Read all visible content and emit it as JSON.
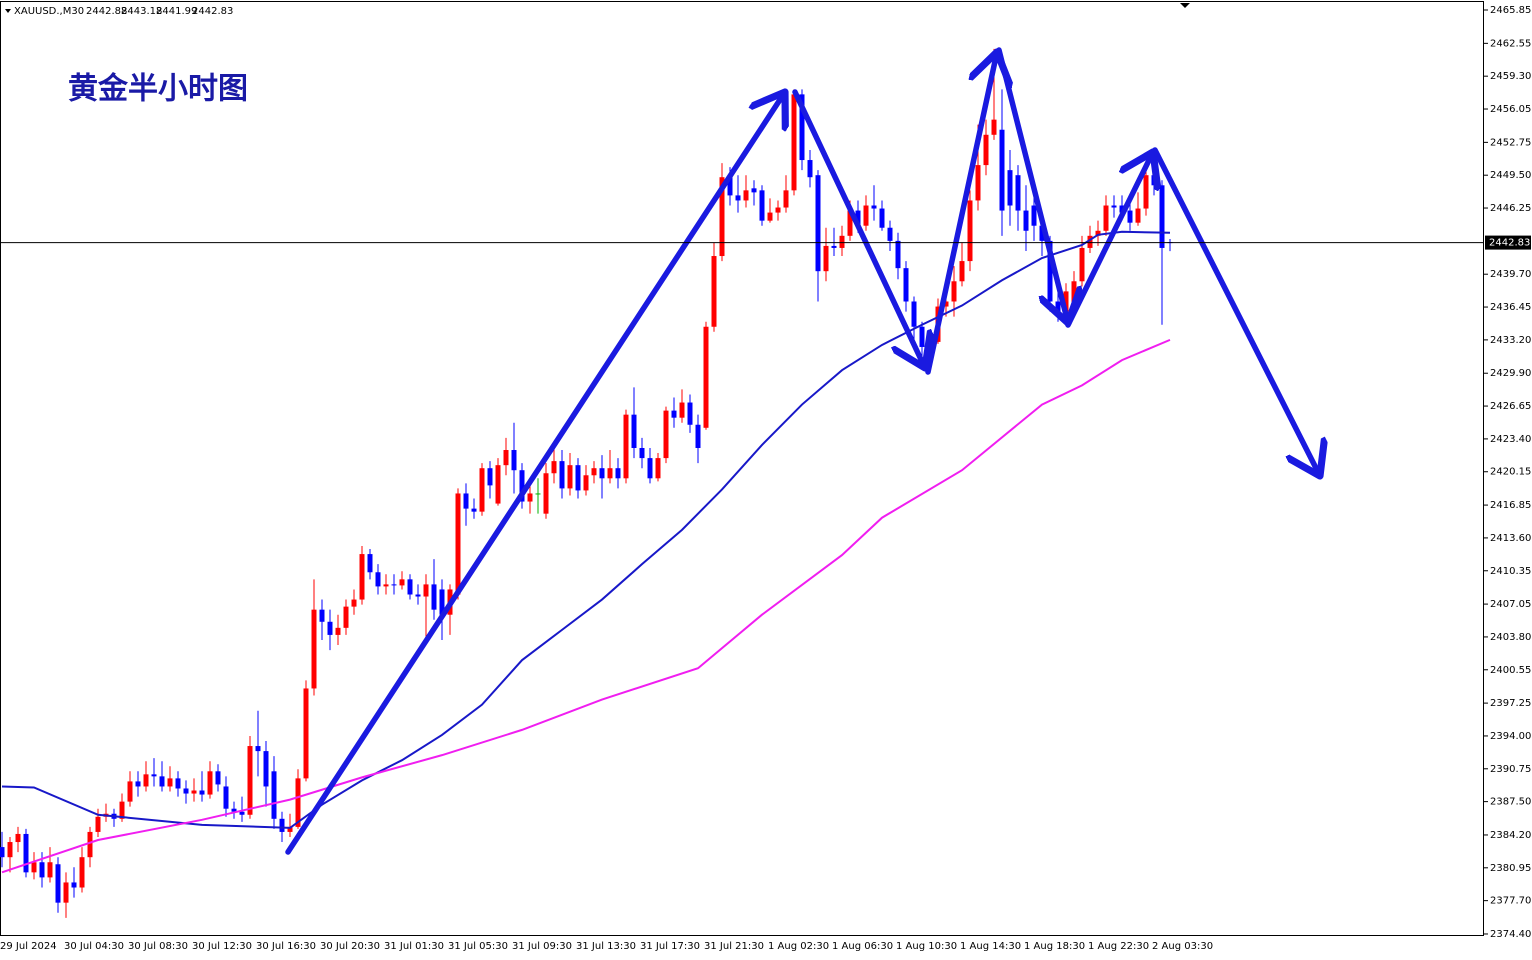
{
  "header": {
    "symbol": "XAUUSD.,M30",
    "open": 2442.88,
    "high": 2443.18,
    "low": 2441.99,
    "close": 2442.83
  },
  "chart_data": {
    "type": "candlestick",
    "title": "黄金半小时图",
    "categories": [
      "29 Jul 2024",
      null,
      null,
      null,
      null,
      null,
      null,
      null,
      "30 Jul 04:30",
      null,
      null,
      null,
      null,
      null,
      null,
      null,
      "30 Jul 08:30",
      null,
      null,
      null,
      null,
      null,
      null,
      null,
      "30 Jul 12:30",
      null,
      null,
      null,
      null,
      null,
      null,
      null,
      "30 Jul 16:30",
      null,
      null,
      null,
      null,
      null,
      null,
      null,
      "30 Jul 20:30",
      null,
      null,
      null,
      null,
      null,
      null,
      null,
      "31 Jul 01:30",
      null,
      null,
      null,
      null,
      null,
      null,
      null,
      "31 Jul 05:30",
      null,
      null,
      null,
      null,
      null,
      null,
      null,
      "31 Jul 09:30",
      null,
      null,
      null,
      null,
      null,
      null,
      null,
      "31 Jul 13:30",
      null,
      null,
      null,
      null,
      null,
      null,
      null,
      "31 Jul 17:30",
      null,
      null,
      null,
      null,
      null,
      null,
      null,
      "31 Jul 21:30",
      null,
      null,
      null,
      null,
      null,
      null,
      null,
      "1 Aug 02:30",
      null,
      null,
      null,
      null,
      null,
      null,
      null,
      "1 Aug 06:30",
      null,
      null,
      null,
      null,
      null,
      null,
      null,
      "1 Aug 10:30",
      null,
      null,
      null,
      null,
      null,
      null,
      null,
      "1 Aug 14:30",
      null,
      null,
      null,
      null,
      null,
      null,
      null,
      "1 Aug 18:30",
      null,
      null,
      null,
      null,
      null,
      null,
      null,
      "1 Aug 22:30",
      null,
      null,
      null,
      null,
      null,
      null,
      null,
      "2 Aug 03:30",
      null,
      null
    ],
    "open": [
      2383,
      2382,
      2383.5,
      2384.3,
      2380.5,
      2381.5,
      2380,
      2381.3,
      2377.5,
      2379.5,
      2379,
      2382,
      2384.5,
      2386,
      2386.3,
      2385.8,
      2387.5,
      2389.5,
      2389,
      2390.2,
      2390,
      2389,
      2389.8,
      2388.8,
      2388.3,
      2388.6,
      2388.2,
      2390.5,
      2389,
      2386.8,
      2386.5,
      2386.2,
      2393,
      2392.5,
      2390.5,
      2385.8,
      2384.5,
      2385,
      2389.8,
      2398.7,
      2406.5,
      2405.3,
      2404,
      2404.7,
      2406.8,
      2407.5,
      2412,
      2410.2,
      2408.8,
      2409,
      2408.9,
      2409.5,
      2408,
      2407.8,
      2409,
      2408.5,
      2406,
      2408,
      2418,
      2416.5,
      2416.2,
      2420.5,
      2417,
      2420.8,
      2422.3,
      2420.3,
      2417.2,
      2418,
      2416,
      2420,
      2421.2,
      2418.5,
      2420.8,
      2418.3,
      2419.8,
      2420.5,
      2419.5,
      2420.5,
      2419.5,
      2425.8,
      2422.5,
      2421.5,
      2419.5,
      2421.5,
      2426.2,
      2425.5,
      2427,
      2424.8,
      2424.5,
      2434.5,
      2441.5,
      2449.3,
      2447.5,
      2447,
      2448.2,
      2448,
      2445,
      2445.8,
      2446.3,
      2448,
      2457.5,
      2451,
      2449.5,
      2440,
      2442.5,
      2442.3,
      2443.5,
      2446,
      2444.5,
      2446.5,
      2446.2,
      2444.3,
      2443,
      2440.3,
      2437,
      2434.5,
      2432.5,
      2433,
      2436.5,
      2437,
      2439,
      2441,
      2447,
      2450.5,
      2453.5,
      2454,
      2450,
      2449.5,
      2446,
      2446.5,
      2444.5,
      2443,
      2437,
      2436,
      2436.2,
      2439,
      2442.3,
      2443.5,
      2444,
      2446.5,
      2446.5,
      2446,
      2444.8,
      2446.2,
      2449.5,
      2448.5,
      2442.88
    ],
    "high": [
      2384.5,
      2384,
      2385,
      2384.8,
      2382.5,
      2382.5,
      2383,
      2382,
      2380.5,
      2381,
      2383,
      2385,
      2386.8,
      2387.3,
      2386.8,
      2388.3,
      2390.5,
      2390.5,
      2391.5,
      2391.8,
      2391.5,
      2391,
      2390.5,
      2389.6,
      2389.8,
      2390.5,
      2391.5,
      2391.2,
      2390,
      2387.5,
      2388,
      2394,
      2396.5,
      2393.5,
      2392,
      2386.5,
      2386.3,
      2390.7,
      2399.5,
      2409.5,
      2407.5,
      2406.5,
      2406,
      2407.5,
      2408.5,
      2412.8,
      2412.5,
      2411,
      2410,
      2410,
      2410.3,
      2410,
      2409,
      2410,
      2411.5,
      2409.5,
      2409,
      2418.5,
      2419,
      2417.5,
      2421,
      2421.2,
      2421.5,
      2423.5,
      2425,
      2421,
      2419.5,
      2419.5,
      2421,
      2422.5,
      2422.3,
      2422,
      2421.5,
      2420.8,
      2421.2,
      2421.8,
      2422.3,
      2421.5,
      2426.3,
      2428.5,
      2423.5,
      2422.5,
      2422,
      2426.6,
      2427.5,
      2428.3,
      2427.8,
      2425.8,
      2435,
      2442.8,
      2450.7,
      2450.3,
      2449.5,
      2449.5,
      2449,
      2448.5,
      2447.2,
      2447,
      2449.5,
      2458,
      2458,
      2452,
      2450,
      2444.3,
      2444.3,
      2444.5,
      2447,
      2447,
      2447.5,
      2448.5,
      2447,
      2445,
      2443.8,
      2441,
      2437.5,
      2435,
      2434,
      2437.3,
      2438,
      2440.5,
      2442.8,
      2448,
      2454.5,
      2455,
      2462,
      2458,
      2452,
      2450.5,
      2448.5,
      2447.8,
      2445.5,
      2443.5,
      2438,
      2438.8,
      2440,
      2443.5,
      2444.5,
      2445,
      2447.5,
      2447.5,
      2447.5,
      2446.8,
      2447.8,
      2450,
      2450.3,
      2449,
      2443.18
    ],
    "low": [
      2381,
      2380.5,
      2382.5,
      2380,
      2379.8,
      2379,
      2379.5,
      2376.5,
      2376,
      2378,
      2378.5,
      2381,
      2384,
      2385.5,
      2385,
      2385.5,
      2387,
      2388,
      2388.5,
      2389,
      2388.5,
      2388.5,
      2388,
      2387.3,
      2387.5,
      2387.5,
      2387.8,
      2388.5,
      2386,
      2385.8,
      2385.5,
      2385.8,
      2390,
      2387,
      2384.8,
      2383.5,
      2384,
      2384.8,
      2389.5,
      2398,
      2403.5,
      2402.5,
      2403,
      2404,
      2406,
      2407,
      2409.5,
      2408,
      2408,
      2408,
      2408.5,
      2407.5,
      2407,
      2403.5,
      2405.5,
      2403.5,
      2404,
      2407.5,
      2414.8,
      2415.5,
      2415.8,
      2417.5,
      2416.8,
      2419.8,
      2418,
      2416.5,
      2416,
      2416,
      2415.5,
      2419,
      2417.5,
      2417.8,
      2417.5,
      2417.8,
      2419,
      2417.5,
      2419,
      2418.5,
      2419,
      2421.5,
      2420.5,
      2419,
      2419.2,
      2421,
      2424.5,
      2425,
      2424,
      2421,
      2424.3,
      2434,
      2441,
      2446.5,
      2445.8,
      2446.3,
      2446.5,
      2444.5,
      2444.8,
      2445,
      2445.8,
      2447.5,
      2450,
      2448.3,
      2437,
      2439,
      2441.5,
      2441.5,
      2443,
      2443.8,
      2444,
      2445,
      2444,
      2442,
      2439.2,
      2436,
      2433,
      2431,
      2431.2,
      2432.8,
      2435.5,
      2435.5,
      2438.5,
      2440,
      2446,
      2449.5,
      2453,
      2443.5,
      2444.5,
      2444,
      2442,
      2443,
      2441.5,
      2436,
      2435,
      2435.2,
      2435.8,
      2438.5,
      2441.8,
      2442.5,
      2443.5,
      2445.3,
      2445,
      2444,
      2444.5,
      2445.5,
      2447.5,
      2434.7,
      2441.99
    ],
    "close": [
      2382,
      2383.5,
      2384.3,
      2380.5,
      2381.5,
      2380,
      2381.5,
      2377.5,
      2379.5,
      2379,
      2382,
      2384.5,
      2386,
      2386.3,
      2385.8,
      2387.5,
      2389.5,
      2389,
      2390.2,
      2390,
      2389,
      2389.8,
      2388.8,
      2388.3,
      2388.6,
      2388.2,
      2390.5,
      2389.2,
      2386.8,
      2386.5,
      2386.2,
      2393,
      2392.5,
      2389,
      2385.8,
      2384.5,
      2385,
      2389.8,
      2398.7,
      2406.5,
      2405.3,
      2404,
      2404.7,
      2406.8,
      2407.5,
      2412,
      2410.2,
      2408.8,
      2409,
      2408.9,
      2409.5,
      2408,
      2407.8,
      2409,
      2406.5,
      2406,
      2408.5,
      2418,
      2416.5,
      2416.2,
      2420.5,
      2418.8,
      2420.8,
      2422.3,
      2420.3,
      2417.2,
      2418,
      2418,
      2420,
      2421.2,
      2418.5,
      2420.8,
      2418.3,
      2419.8,
      2420.5,
      2419.5,
      2420.5,
      2419.5,
      2425.8,
      2422.5,
      2421.5,
      2419.5,
      2421.5,
      2426.2,
      2425.5,
      2427,
      2424.8,
      2422.5,
      2434.5,
      2441.5,
      2449.3,
      2447.5,
      2447,
      2448,
      2447.8,
      2445,
      2445.8,
      2446.3,
      2448,
      2457.5,
      2451,
      2449.3,
      2440,
      2442.5,
      2442.3,
      2443.5,
      2446,
      2444.5,
      2446.5,
      2446.2,
      2444.3,
      2443,
      2440.3,
      2437,
      2434.5,
      2432.5,
      2433,
      2436.5,
      2437,
      2439,
      2441,
      2447,
      2450.5,
      2453.5,
      2455,
      2446,
      2446.5,
      2446,
      2444,
      2444.5,
      2443,
      2437,
      2436,
      2438,
      2439,
      2442.3,
      2443.5,
      2444,
      2446.5,
      2446.3,
      2445.8,
      2444.8,
      2446.2,
      2449.5,
      2448.5,
      2442.3,
      2442.83
    ],
    "up_color": "#ff0000",
    "down_color": "#0000ff",
    "doji_color": "#00b000",
    "overlays": [
      {
        "color": "#1818c8",
        "x": [
          0,
          4,
          12,
          25,
          36,
          40,
          45,
          50,
          55,
          60,
          65,
          70,
          75,
          80,
          85,
          90,
          95,
          100,
          105,
          110,
          115,
          120,
          125,
          130,
          135,
          137,
          140,
          146
        ],
        "values": [
          2389.0,
          2388.9,
          2386.2,
          2385.2,
          2384.9,
          2387.2,
          2389.6,
          2391.6,
          2394.1,
          2397.1,
          2401.5,
          2404.5,
          2407.5,
          2411.0,
          2414.4,
          2418.4,
          2422.8,
          2426.8,
          2430.2,
          2432.7,
          2434.7,
          2436.6,
          2439.1,
          2441.3,
          2442.6,
          2443.6,
          2443.9,
          2443.8
        ]
      },
      {
        "color": "#f01ef0",
        "x": [
          0,
          12,
          25,
          36,
          45,
          55,
          65,
          75,
          87,
          95,
          105,
          110,
          120,
          130,
          135,
          140,
          146
        ],
        "values": [
          2380.5,
          2383.7,
          2385.7,
          2387.7,
          2389.9,
          2392.1,
          2394.6,
          2397.6,
          2400.7,
          2406.0,
          2411.9,
          2415.6,
          2420.3,
          2426.8,
          2428.7,
          2431.2,
          2433.2
        ]
      }
    ],
    "ylim": [
      2374.2,
      2466.84
    ],
    "yticks": [
      2465.85,
      2462.55,
      {
        "value": 2459.3,
        "label": "2459.30"
      },
      2456.05,
      2452.75,
      {
        "value": 2449.5,
        "label": "2449.50"
      },
      2446.25,
      {
        "value": 2439.7,
        "label": "2439.70"
      },
      2436.45,
      {
        "value": 2433.2,
        "label": "2433.20"
      },
      {
        "value": 2429.9,
        "label": "2429.90"
      },
      2426.65,
      {
        "value": 2423.4,
        "label": "2423.40"
      },
      2420.15,
      2416.85,
      {
        "value": 2413.6,
        "label": "2413.60"
      },
      2410.35,
      2407.05,
      {
        "value": 2403.8,
        "label": "2403.80"
      },
      2400.55,
      2397.25,
      {
        "value": 2394,
        "label": "2394.00"
      },
      2390.75,
      {
        "value": 2387.5,
        "label": "2387.50"
      },
      {
        "value": 2384.2,
        "label": "2384.20"
      },
      2380.95,
      {
        "value": 2377.7,
        "label": "2377.70"
      },
      {
        "value": 2374.4,
        "label": "2374.40"
      }
    ],
    "grid": false
  }
}
